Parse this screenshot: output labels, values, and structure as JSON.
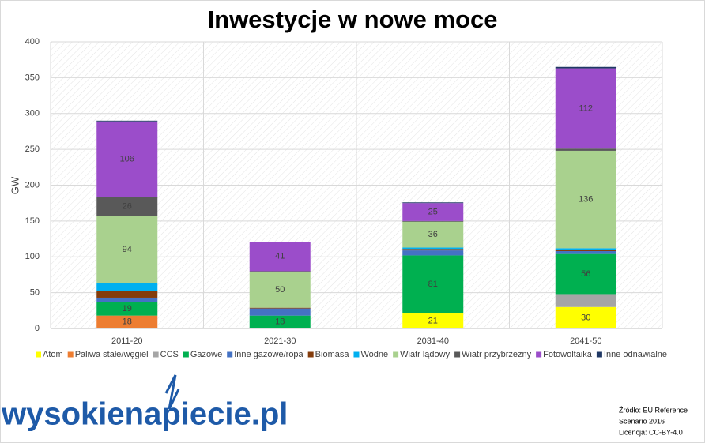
{
  "chart_data": {
    "type": "stacked-bar",
    "title": "Inwestycje w nowe moce",
    "y_label": "GW",
    "categories": [
      "2011-20",
      "2021-30",
      "2031-40",
      "2041-50"
    ],
    "ylim": [
      0,
      400
    ],
    "yticks": [
      0,
      50,
      100,
      150,
      200,
      250,
      300,
      350,
      400
    ],
    "grid": true,
    "legend": "bottom",
    "series": [
      {
        "name": "Atom",
        "color": "#ffff00",
        "values": [
          0,
          0,
          21,
          30
        ],
        "value_labels": [
          null,
          null,
          "21",
          "30"
        ]
      },
      {
        "name": "Paliwa stałe/węgiel",
        "color": "#ed7d31",
        "values": [
          18,
          0,
          0,
          0
        ],
        "value_labels": [
          "18",
          null,
          null,
          null
        ]
      },
      {
        "name": "CCS",
        "color": "#a5a5a5",
        "values": [
          0,
          0,
          0,
          18
        ],
        "value_labels": [
          null,
          null,
          null,
          null
        ]
      },
      {
        "name": "Gazowe",
        "color": "#00b050",
        "values": [
          19,
          18,
          81,
          56
        ],
        "value_labels": [
          "19",
          "18",
          "81",
          "56"
        ]
      },
      {
        "name": "Inne gazowe/ropa",
        "color": "#4472c4",
        "values": [
          6,
          10,
          7,
          4
        ],
        "value_labels": [
          null,
          null,
          null,
          null
        ]
      },
      {
        "name": "Biomasa",
        "color": "#843c0c",
        "values": [
          9,
          1,
          2,
          2
        ],
        "value_labels": [
          null,
          null,
          null,
          null
        ]
      },
      {
        "name": "Wodne",
        "color": "#00b0f0",
        "values": [
          11,
          0,
          2,
          2
        ],
        "value_labels": [
          null,
          null,
          null,
          null
        ]
      },
      {
        "name": "Wiatr lądowy",
        "color": "#a9d18e",
        "values": [
          94,
          50,
          36,
          136
        ],
        "value_labels": [
          "94",
          "50",
          "36",
          "136"
        ]
      },
      {
        "name": "Wiatr przybrzeżny",
        "color": "#595959",
        "values": [
          26,
          1,
          1,
          3
        ],
        "value_labels": [
          "26",
          null,
          null,
          null
        ]
      },
      {
        "name": "Fotowoltaika",
        "color": "#9b4dca",
        "values": [
          106,
          41,
          25,
          112
        ],
        "value_labels": [
          "106",
          "41",
          "25",
          "112"
        ]
      },
      {
        "name": "Inne odnawialne",
        "color": "#1f3864",
        "values": [
          1,
          0,
          1,
          2
        ],
        "value_labels": [
          null,
          null,
          null,
          null
        ]
      }
    ]
  },
  "logo": "wysokienapiecie.pl",
  "source": [
    "Źródło: EU Reference",
    "Scenario 2016",
    "Licencja: CC-BY-4.0"
  ]
}
